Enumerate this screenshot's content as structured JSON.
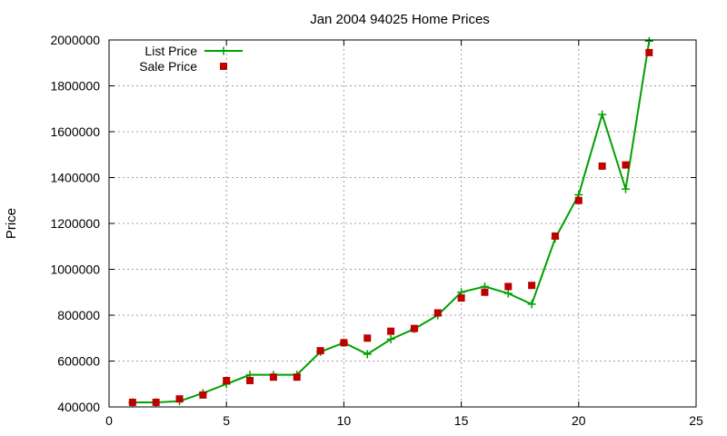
{
  "chart_data": {
    "type": "line",
    "title": "Jan 2004 94025 Home Prices",
    "xlabel": "",
    "ylabel": "Price",
    "xlim": [
      0,
      25
    ],
    "ylim": [
      400000,
      2000000
    ],
    "xticks": [
      0,
      5,
      10,
      15,
      20,
      25
    ],
    "yticks": [
      400000,
      600000,
      800000,
      1000000,
      1200000,
      1400000,
      1600000,
      1800000,
      2000000
    ],
    "grid": true,
    "legend_position": "top-left",
    "series": [
      {
        "name": "List Price",
        "style": "line-plus",
        "color": "#00a000",
        "x": [
          1,
          2,
          3,
          4,
          5,
          6,
          7,
          8,
          9,
          10,
          11,
          12,
          13,
          14,
          15,
          16,
          17,
          18,
          19,
          20,
          21,
          22,
          23
        ],
        "y": [
          420000,
          420000,
          425000,
          460000,
          500000,
          540000,
          540000,
          540000,
          640000,
          680000,
          630000,
          695000,
          740000,
          800000,
          900000,
          925000,
          895000,
          848000,
          1135000,
          1325000,
          1675000,
          1350000,
          1995000
        ]
      },
      {
        "name": "Sale Price",
        "style": "square",
        "color": "#c00000",
        "x": [
          1,
          2,
          3,
          4,
          5,
          6,
          7,
          8,
          9,
          10,
          11,
          12,
          13,
          14,
          15,
          16,
          17,
          18,
          19,
          20,
          21,
          22,
          23
        ],
        "y": [
          420000,
          420000,
          435000,
          452000,
          515000,
          515000,
          530000,
          530000,
          645000,
          680000,
          700000,
          730000,
          742000,
          810000,
          875000,
          900000,
          925000,
          930000,
          1145000,
          1300000,
          1450000,
          1455000,
          1945000
        ]
      }
    ]
  }
}
